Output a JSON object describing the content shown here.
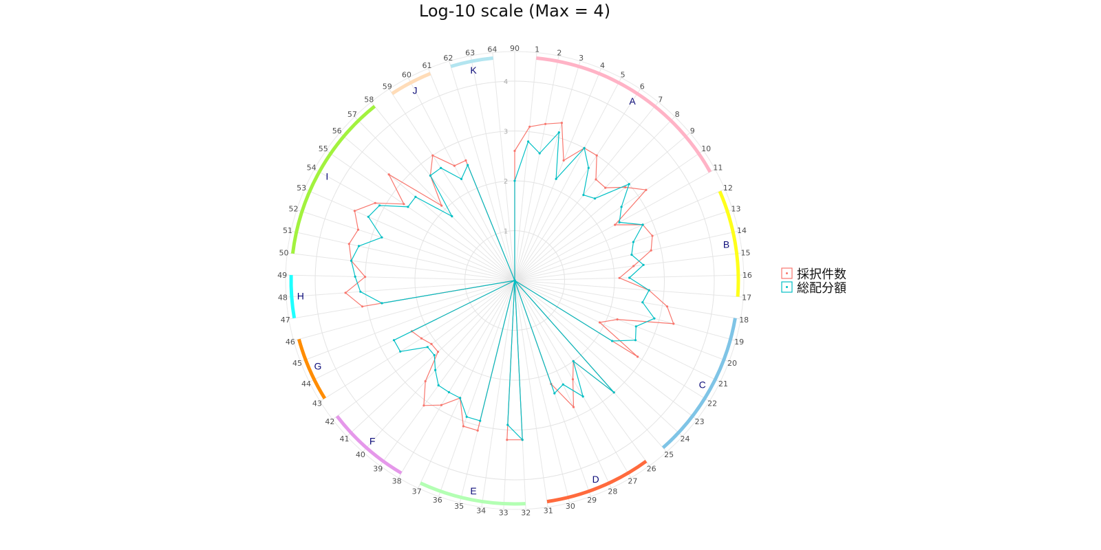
{
  "chart_data": {
    "type": "radar",
    "title": "Log-10 scale (Max = 4)",
    "r_max": 4,
    "r_ticks": [
      "1",
      "2",
      "3",
      "4"
    ],
    "grid": true,
    "legend_position": "right",
    "categories": [
      "90",
      "1",
      "2",
      "3",
      "4",
      "5",
      "6",
      "7",
      "8",
      "9",
      "10",
      "11",
      "12",
      "13",
      "14",
      "15",
      "16",
      "17",
      "18",
      "19",
      "20",
      "21",
      "22",
      "23",
      "24",
      "25",
      "26",
      "27",
      "28",
      "29",
      "30",
      "31",
      "32",
      "33",
      "34",
      "35",
      "36",
      "37",
      "38",
      "39",
      "40",
      "41",
      "42",
      "43",
      "44",
      "45",
      "46",
      "47",
      "48",
      "49",
      "50",
      "51",
      "52",
      "53",
      "54",
      "55",
      "56",
      "57",
      "58",
      "59",
      "60",
      "61",
      "62",
      "63",
      "64"
    ],
    "series": [
      {
        "name": "採択件数",
        "color": "#f8766d",
        "values": [
          2.6,
          3.1,
          3.2,
          3.3,
          2.6,
          3.0,
          3.0,
          2.6,
          2.6,
          2.9,
          3.2,
          2.3,
          2.8,
          2.9,
          2.8,
          2.4,
          2.1,
          2.7,
          3.1,
          3.3,
          2.2,
          1.9,
          2.9,
          0,
          0,
          3.0,
          2.0,
          2.3,
          2.8,
          2.2,
          0,
          0,
          3.2,
          3.2,
          0,
          3.1,
          3.1,
          2.6,
          2.9,
          3.1,
          2.7,
          2.1,
          2.1,
          2.2,
          2.3,
          0,
          0,
          3.1,
          3.4,
          3.0,
          3.3,
          3.4,
          3.3,
          3.5,
          3.2,
          2.7,
          3.3,
          2.1,
          2.7,
          3.0,
          2.6,
          2.6,
          0,
          0,
          0
        ]
      },
      {
        "name": "総配分額",
        "color": "#00bfc4",
        "values": [
          2.0,
          2.8,
          2.6,
          3.1,
          2.2,
          3.0,
          2.7,
          2.2,
          2.3,
          3.0,
          2.6,
          2.4,
          2.8,
          2.5,
          2.4,
          2.6,
          2.3,
          2.7,
          2.6,
          2.9,
          2.6,
          2.7,
          2.3,
          0,
          0,
          3.0,
          2.0,
          2.7,
          2.3,
          2.4,
          0,
          0,
          3.2,
          2.9,
          0,
          2.9,
          2.9,
          2.6,
          2.6,
          2.6,
          2.4,
          2.2,
          2.2,
          2.7,
          2.7,
          0,
          0,
          2.7,
          3.1,
          3.2,
          3.3,
          3.2,
          2.8,
          3.2,
          3.1,
          2.6,
          2.6,
          1.8,
          2.7,
          2.7,
          2.3,
          2.5,
          0,
          0,
          0
        ]
      }
    ],
    "groups": [
      {
        "label": "A",
        "start": 1,
        "end": 11,
        "color": "#ffb3c6"
      },
      {
        "label": "B",
        "start": 12,
        "end": 17,
        "color": "#ffff1a"
      },
      {
        "label": "C",
        "start": 18,
        "end": 25,
        "color": "#7fc4e6"
      },
      {
        "label": "D",
        "start": 26,
        "end": 31,
        "color": "#ff6a3d"
      },
      {
        "label": "E",
        "start": 32,
        "end": 37,
        "color": "#b3ffb3"
      },
      {
        "label": "F",
        "start": 38,
        "end": 42,
        "color": "#e598ea"
      },
      {
        "label": "G",
        "start": 43,
        "end": 46,
        "color": "#ff8c00"
      },
      {
        "label": "H",
        "start": 47,
        "end": 49,
        "color": "#1effff"
      },
      {
        "label": "I",
        "start": 50,
        "end": 58,
        "color": "#a2f23e"
      },
      {
        "label": "J",
        "start": 59,
        "end": 61,
        "color": "#ffdcb8"
      },
      {
        "label": "K",
        "start": 62,
        "end": 64,
        "color": "#b3e5f0"
      }
    ]
  }
}
